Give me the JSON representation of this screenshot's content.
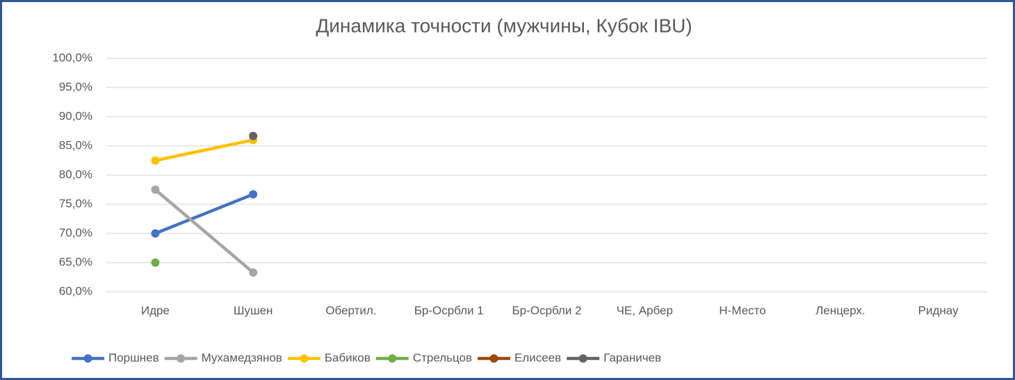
{
  "chart_data": {
    "type": "line",
    "title": "Динамика точности (мужчины, Кубок IBU)",
    "categories": [
      "Идре",
      "Шушен",
      "Обертил.",
      "Бр-Осрбли 1",
      "Бр-Осрбли 2",
      "ЧЕ, Арбер",
      "Н-Место",
      "Ленцерх.",
      "Риднау"
    ],
    "series": [
      {
        "name": "Поршнев",
        "color": "#4472c4",
        "values": [
          70.0,
          76.7,
          null,
          null,
          null,
          null,
          null,
          null,
          null
        ]
      },
      {
        "name": "Мухамедзянов",
        "color": "#a5a5a5",
        "values": [
          77.5,
          63.3,
          null,
          null,
          null,
          null,
          null,
          null,
          null
        ]
      },
      {
        "name": "Бабиков",
        "color": "#ffc000",
        "values": [
          82.5,
          86.0,
          null,
          null,
          null,
          null,
          null,
          null,
          null
        ]
      },
      {
        "name": "Стрельцов",
        "color": "#70ad47",
        "values": [
          65.0,
          null,
          null,
          null,
          null,
          null,
          null,
          null,
          null
        ]
      },
      {
        "name": "Елисеев",
        "color": "#9e480e",
        "values": [
          null,
          null,
          null,
          null,
          null,
          null,
          null,
          null,
          null
        ]
      },
      {
        "name": "Гараничев",
        "color": "#636363",
        "values": [
          null,
          86.7,
          null,
          null,
          null,
          null,
          null,
          null,
          null
        ]
      }
    ],
    "ylim": [
      60,
      100
    ],
    "yticks": [
      {
        "value": 60,
        "label": "60,0%"
      },
      {
        "value": 65,
        "label": "65,0%"
      },
      {
        "value": 70,
        "label": "70,0%"
      },
      {
        "value": 75,
        "label": "75,0%"
      },
      {
        "value": 80,
        "label": "80,0%"
      },
      {
        "value": 85,
        "label": "85,0%"
      },
      {
        "value": 90,
        "label": "90,0%"
      },
      {
        "value": 95,
        "label": "95,0%"
      },
      {
        "value": 100,
        "label": "100,0%"
      }
    ],
    "grid": true,
    "legend": "bottom"
  }
}
